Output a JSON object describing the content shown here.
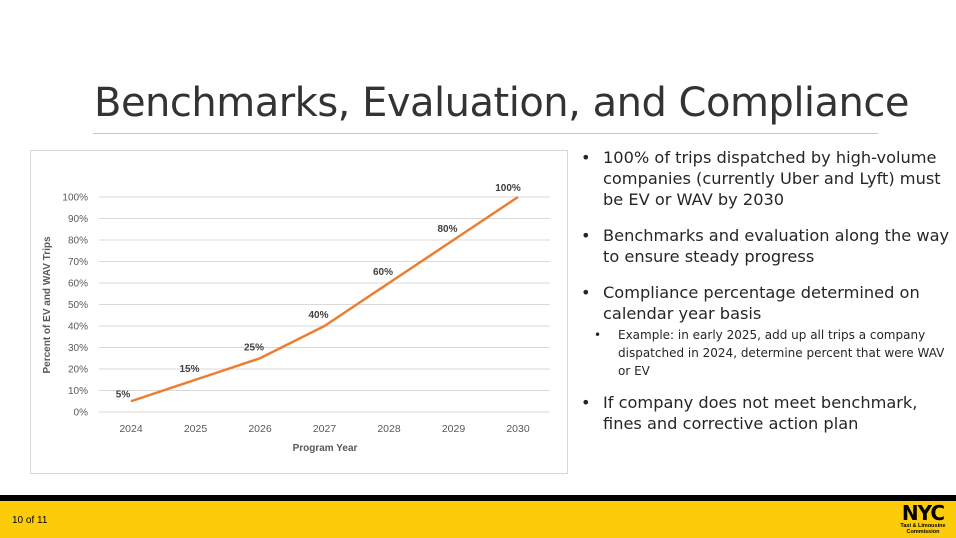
{
  "title": "Benchmarks, Evaluation, and Compliance",
  "chart_data": {
    "type": "line",
    "x": [
      "2024",
      "2025",
      "2026",
      "2027",
      "2028",
      "2029",
      "2030"
    ],
    "series": [
      {
        "name": "Percent of EV and WAV Trips",
        "values": [
          5,
          15,
          25,
          40,
          60,
          80,
          100
        ]
      }
    ],
    "data_labels": [
      "5%",
      "15%",
      "25%",
      "40%",
      "60%",
      "80%",
      "100%"
    ],
    "xlabel": "Program Year",
    "ylabel": "Percent of EV and WAV Trips",
    "ylim": [
      0,
      100
    ],
    "yticks": [
      "0%",
      "10%",
      "20%",
      "30%",
      "40%",
      "50%",
      "60%",
      "70%",
      "80%",
      "90%",
      "100%"
    ],
    "grid": true,
    "line_color": "#ed7d31"
  },
  "bullets": {
    "b1": "100% of trips dispatched by high-volume companies (currently Uber and Lyft) must be EV or WAV by 2030",
    "b2": "Benchmarks and evaluation along the way to ensure steady progress",
    "b3": "Compliance percentage determined on calendar year basis",
    "b3_sub": "Example: in early 2025, add up all trips a company dispatched in 2024, determine percent that were WAV or EV",
    "b4": "If company does not meet benchmark, fines and corrective action plan",
    "bullet_char": "•"
  },
  "footer": {
    "page": "10 of 11",
    "logo_nyc": "NYC",
    "logo_line1": "Taxi & Limousine",
    "logo_line2": "Commission"
  }
}
